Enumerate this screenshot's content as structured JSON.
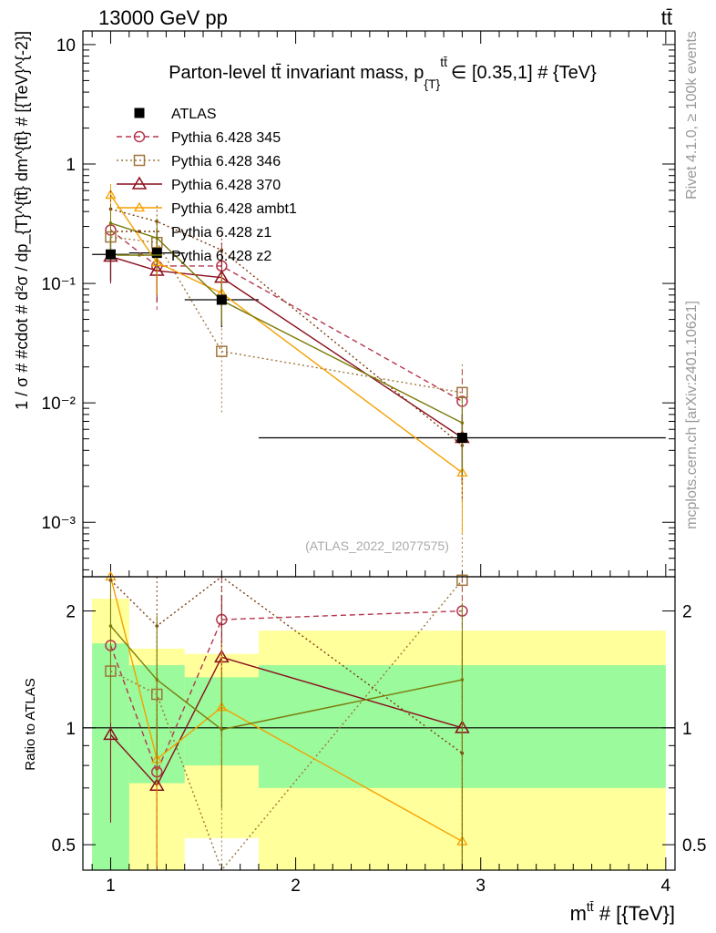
{
  "header": {
    "left_label": "13000 GeV pp",
    "right_label": "tt̄"
  },
  "side_labels": {
    "rivet": "Rivet 4.1.0, ≥ 100k events",
    "source": "mcplots.cern.ch [arXiv:2401.10621]"
  },
  "watermark": "(ATLAS_2022_I2077575)",
  "colors": {
    "ATLAS": "#000000",
    "p345": "#b5364e",
    "p346": "#a0753a",
    "p370": "#8b0f1e",
    "ambt1": "#f5a000",
    "z1": "#7d3c10",
    "z2": "#7a7a0a",
    "band_inner": "#9bfa9b",
    "band_outer": "#ffff9b"
  },
  "chart_data": [
    {
      "type": "line",
      "log_y": true,
      "title": "Parton-level tt̄ invariant mass, p_{T}^{tt̄} ∈ [0.35,1] # {TeV}",
      "title_main": "Parton-level tt̄ invariant mass, p",
      "title_sub": "{T}",
      "title_sup": "tt̄",
      "title_tail": "∈ [0.35,1] # {TeV}",
      "ylabel": "1 / σ # #cdot # d²σ / dp_{T}^{tt̄} dm^{tt̄} # [{TeV}^{-2}]",
      "xlim": [
        0.85,
        4.05
      ],
      "ylim": [
        0.00035,
        13
      ],
      "yticks": [
        {
          "value": 10,
          "label": "10"
        },
        {
          "value": 1,
          "label": "1"
        },
        {
          "value": 0.1,
          "label": "10⁻¹"
        },
        {
          "value": 0.01,
          "label": "10⁻²"
        },
        {
          "value": 0.001,
          "label": "10⁻³"
        }
      ],
      "legend": [
        {
          "label": "ATLAS",
          "series": "ATLAS"
        },
        {
          "label": "Pythia 6.428 345",
          "series": "p345"
        },
        {
          "label": "Pythia 6.428 346",
          "series": "p346"
        },
        {
          "label": "Pythia 6.428 370",
          "series": "p370"
        },
        {
          "label": "Pythia 6.428 ambt1",
          "series": "ambt1"
        },
        {
          "label": "Pythia 6.428 z1",
          "series": "z1"
        },
        {
          "label": "Pythia 6.428 z2",
          "series": "z2"
        }
      ],
      "data": {
        "x": [
          1.0,
          1.25,
          1.6,
          2.9
        ],
        "xerr": [
          [
            0.9,
            1.1
          ],
          [
            1.1,
            1.4
          ],
          [
            1.4,
            1.8
          ],
          [
            1.8,
            4.0
          ]
        ],
        "y": [
          0.175,
          0.18,
          0.073,
          0.0051
        ],
        "yerr": [
          0.07,
          0.1,
          0.03,
          0.003
        ]
      },
      "series": [
        {
          "key": "p345",
          "name": "Pythia 6.428 345",
          "marker": "circle",
          "dash": "6,4",
          "x": [
            1.0,
            1.25,
            1.6,
            2.9
          ],
          "y": [
            0.28,
            0.14,
            0.14,
            0.0103
          ],
          "err_hi": [
            0.43,
            0.22,
            0.22,
            0.019
          ],
          "err_lo": [
            0.13,
            0.06,
            0.06,
            0.0015
          ]
        },
        {
          "key": "p346",
          "name": "Pythia 6.428 346",
          "marker": "square",
          "dash": "2,3",
          "x": [
            1.0,
            1.25,
            1.6,
            2.9
          ],
          "y": [
            0.245,
            0.22,
            0.027,
            0.0122
          ],
          "err_hi": [
            0.35,
            0.32,
            0.05,
            0.021
          ],
          "err_lo": [
            0.14,
            0.12,
            0.008,
            0.0004
          ]
        },
        {
          "key": "p370",
          "name": "Pythia 6.428 370",
          "marker": "triangle",
          "dash": "",
          "x": [
            1.0,
            1.25,
            1.6,
            2.9
          ],
          "y": [
            0.168,
            0.128,
            0.112,
            0.0051
          ],
          "err_hi": [
            0.24,
            0.19,
            0.16,
            0.009
          ],
          "err_lo": [
            0.1,
            0.07,
            0.07,
            0.0022
          ]
        },
        {
          "key": "ambt1",
          "name": "Pythia 6.428 ambt1",
          "marker": "triangle-small",
          "dash": "",
          "x": [
            1.0,
            1.25,
            1.6,
            2.9
          ],
          "y": [
            0.55,
            0.15,
            0.083,
            0.0026
          ],
          "err_hi": [
            0.68,
            0.25,
            0.12,
            0.005
          ],
          "err_lo": [
            0.38,
            0.08,
            0.05,
            0.0008
          ]
        },
        {
          "key": "z1",
          "name": "Pythia 6.428 z1",
          "marker": "point",
          "dash": "2,3",
          "x": [
            1.0,
            1.25,
            1.6,
            2.9
          ],
          "y": [
            0.42,
            0.33,
            0.19,
            0.0044
          ],
          "err_hi": [
            0.6,
            0.45,
            0.26,
            0.008
          ],
          "err_lo": [
            0.25,
            0.18,
            0.1,
            0.0015
          ]
        },
        {
          "key": "z2",
          "name": "Pythia 6.428 z2",
          "marker": "point",
          "dash": "",
          "x": [
            1.0,
            1.25,
            1.6,
            2.9
          ],
          "y": [
            0.32,
            0.24,
            0.072,
            0.0068
          ],
          "err_hi": [
            0.45,
            0.35,
            0.1,
            0.011
          ],
          "err_lo": [
            0.18,
            0.13,
            0.045,
            0.0025
          ]
        }
      ]
    },
    {
      "type": "line",
      "log_y": true,
      "ylabel": "Ratio to ATLAS",
      "xlabel": "m^{tt̄} # [{TeV}]",
      "xlabel_main": "m",
      "xlabel_sup": "tt̄",
      "xlabel_tail": " # [{TeV}]",
      "xlim": [
        0.85,
        4.05
      ],
      "ylim": [
        0.43,
        2.45
      ],
      "xticks": [
        {
          "value": 1,
          "label": "1"
        },
        {
          "value": 2,
          "label": "2"
        },
        {
          "value": 3,
          "label": "3"
        },
        {
          "value": 4,
          "label": "4"
        }
      ],
      "yticks": [
        {
          "value": 2,
          "label": "2"
        },
        {
          "value": 1,
          "label": "1"
        },
        {
          "value": 0.5,
          "label": "0.5"
        }
      ],
      "bands": [
        {
          "x0": 0.9,
          "x1": 1.1,
          "inner": [
            0.43,
            1.65
          ],
          "outer": [
            0.43,
            2.15
          ]
        },
        {
          "x0": 1.1,
          "x1": 1.4,
          "inner": [
            0.72,
            1.45
          ],
          "outer": [
            0.43,
            1.6
          ]
        },
        {
          "x0": 1.4,
          "x1": 1.8,
          "inner": [
            0.8,
            1.35
          ],
          "outer": [
            0.52,
            1.55
          ]
        },
        {
          "x0": 1.8,
          "x1": 4.0,
          "inner": [
            0.7,
            1.45
          ],
          "outer": [
            0.43,
            1.78
          ]
        }
      ],
      "series": [
        {
          "key": "p345",
          "x": [
            1.0,
            1.25,
            1.6,
            2.9
          ],
          "y": [
            1.63,
            0.77,
            1.9,
            2.0
          ],
          "err_hi": [
            2.45,
            1.2,
            2.45,
            2.45
          ],
          "err_lo": [
            0.8,
            0.43,
            0.8,
            0.43
          ]
        },
        {
          "key": "p346",
          "x": [
            1.0,
            1.25,
            1.6,
            2.9
          ],
          "y": [
            1.4,
            1.22,
            0.37,
            2.4
          ],
          "err_hi": [
            2.0,
            1.8,
            0.69,
            2.45
          ],
          "err_lo": [
            0.8,
            0.66,
            0.43,
            0.43
          ]
        },
        {
          "key": "p370",
          "x": [
            1.0,
            1.25,
            1.6,
            2.9
          ],
          "y": [
            0.96,
            0.71,
            1.52,
            1.0
          ],
          "err_hi": [
            1.37,
            1.05,
            2.2,
            1.7
          ],
          "err_lo": [
            0.57,
            0.43,
            0.95,
            0.43
          ]
        },
        {
          "key": "ambt1",
          "x": [
            1.0,
            1.25,
            1.6,
            2.9
          ],
          "y": [
            2.45,
            0.83,
            1.13,
            0.51
          ],
          "err_hi": [
            2.45,
            1.4,
            1.65,
            1.0
          ],
          "err_lo": [
            1.5,
            0.44,
            0.68,
            0.43
          ]
        },
        {
          "key": "z1",
          "x": [
            1.0,
            1.25,
            1.6,
            2.9
          ],
          "y": [
            2.4,
            1.83,
            2.6,
            0.86
          ],
          "err_hi": [
            2.45,
            2.45,
            2.45,
            1.5
          ],
          "err_lo": [
            1.4,
            1.0,
            1.4,
            0.43
          ]
        },
        {
          "key": "z2",
          "x": [
            1.0,
            1.25,
            1.6,
            2.9
          ],
          "y": [
            1.83,
            1.33,
            0.99,
            1.33
          ],
          "err_hi": [
            2.45,
            1.95,
            1.4,
            2.1
          ],
          "err_lo": [
            1.03,
            0.72,
            0.62,
            0.43
          ]
        }
      ]
    }
  ]
}
